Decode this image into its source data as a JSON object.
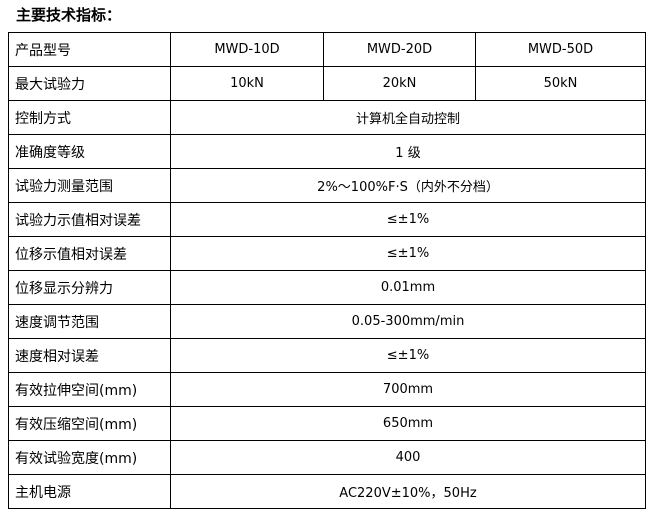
{
  "title": "主要技术指标：",
  "header": {
    "label": "产品型号",
    "models": [
      "MWD-10D",
      "MWD-20D",
      "MWD-50D"
    ]
  },
  "force": {
    "label": "最大试验力",
    "values": [
      "10kN",
      "20kN",
      "50kN"
    ]
  },
  "rows": [
    {
      "label": "控制方式",
      "value": "计算机全自动控制"
    },
    {
      "label": "准确度等级",
      "value": "1 级"
    },
    {
      "label": "试验力测量范围",
      "value": "2%～100%F·S（内外不分档）"
    },
    {
      "label": "试验力示值相对误差",
      "value": "≤±1%"
    },
    {
      "label": "位移示值相对误差",
      "value": "≤±1%"
    },
    {
      "label": "位移显示分辨力",
      "value": "0.01mm"
    },
    {
      "label": "速度调节范围",
      "value": "0.05-300mm/min"
    },
    {
      "label": "速度相对误差",
      "value": "≤±1%"
    },
    {
      "label": "有效拉伸空间(mm)",
      "value": "700mm"
    },
    {
      "label": "有效压缩空间(mm)",
      "value": "650mm"
    },
    {
      "label": "有效试验宽度(mm)",
      "value": "400"
    },
    {
      "label": "主机电源",
      "value": "AC220V±10%，50Hz"
    }
  ]
}
